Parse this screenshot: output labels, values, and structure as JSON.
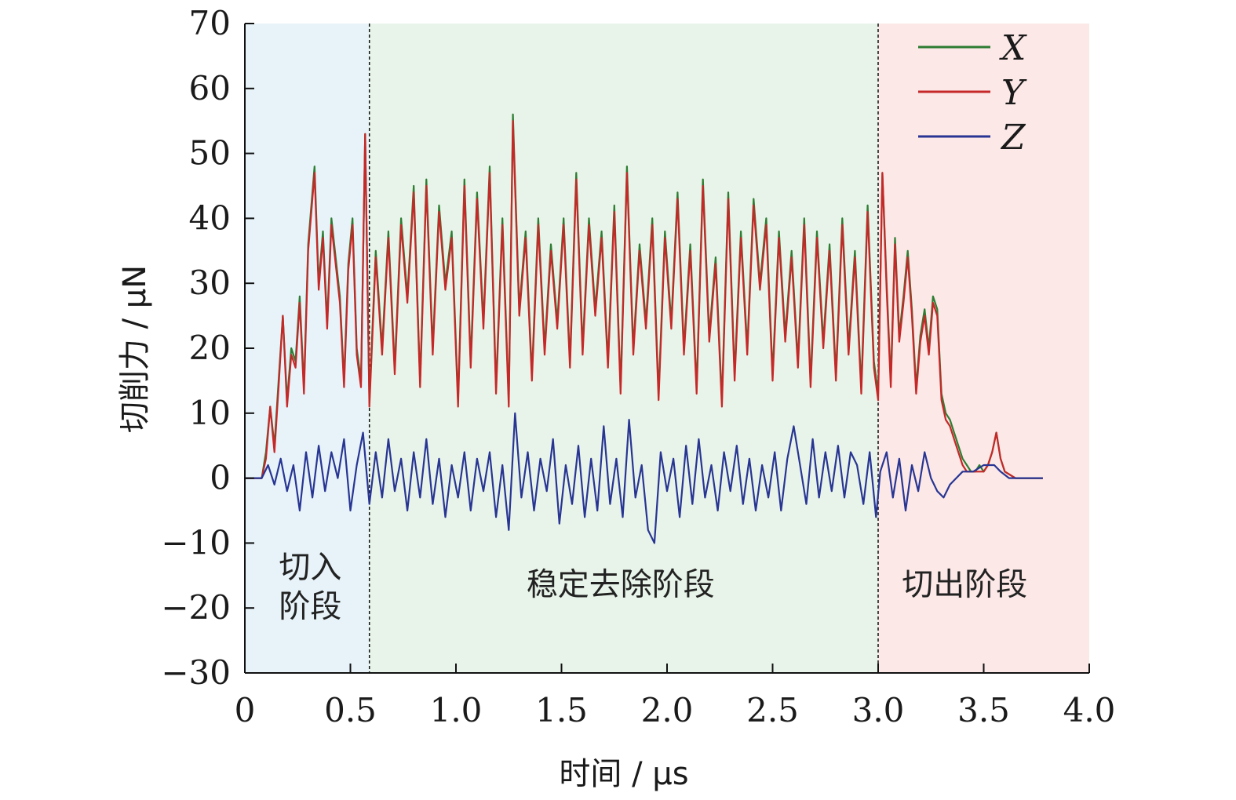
{
  "chart_data": {
    "type": "line",
    "xlabel": "时间 / μs",
    "ylabel": "切削力 / μN",
    "xlim": [
      0,
      4.0
    ],
    "ylim": [
      -30,
      70
    ],
    "x_ticks": [
      0,
      0.5,
      1.0,
      1.5,
      2.0,
      2.5,
      3.0,
      3.5,
      4.0
    ],
    "x_tick_labels": [
      "0",
      "0.5",
      "1.0",
      "1.5",
      "2.0",
      "2.5",
      "3.0",
      "3.5",
      "4.0"
    ],
    "y_ticks": [
      70,
      60,
      50,
      40,
      30,
      20,
      10,
      0,
      -10,
      -20,
      -30
    ],
    "y_tick_labels": [
      "70",
      "60",
      "50",
      "40",
      "30",
      "20",
      "10",
      "0",
      "−10",
      "−20",
      "−30"
    ],
    "legend_position": "top-right",
    "regions": [
      {
        "x_start": 0.0,
        "x_end": 0.59,
        "label_lines": [
          "切入",
          "阶段"
        ],
        "color": "#e7f3f9"
      },
      {
        "x_start": 0.59,
        "x_end": 3.0,
        "label_lines": [
          "稳定去除阶段"
        ],
        "color": "#e8f4e9"
      },
      {
        "x_start": 3.0,
        "x_end": 4.0,
        "label_lines": [
          "切出阶段"
        ],
        "color": "#fbe8e7"
      }
    ],
    "boundaries": [
      0.59,
      3.0
    ],
    "series": [
      {
        "name": "X",
        "color": "#2e7d32",
        "x": [
          0,
          0.08,
          0.1,
          0.12,
          0.14,
          0.16,
          0.18,
          0.2,
          0.22,
          0.24,
          0.26,
          0.28,
          0.3,
          0.33,
          0.35,
          0.37,
          0.39,
          0.41,
          0.43,
          0.45,
          0.47,
          0.49,
          0.51,
          0.53,
          0.55,
          0.57,
          0.59,
          0.62,
          0.65,
          0.68,
          0.71,
          0.74,
          0.77,
          0.8,
          0.83,
          0.86,
          0.89,
          0.92,
          0.95,
          0.98,
          1.01,
          1.04,
          1.07,
          1.1,
          1.13,
          1.16,
          1.19,
          1.22,
          1.25,
          1.27,
          1.3,
          1.33,
          1.36,
          1.39,
          1.42,
          1.45,
          1.48,
          1.51,
          1.54,
          1.57,
          1.6,
          1.63,
          1.66,
          1.69,
          1.72,
          1.75,
          1.78,
          1.81,
          1.84,
          1.87,
          1.9,
          1.93,
          1.96,
          1.99,
          2.02,
          2.05,
          2.08,
          2.11,
          2.14,
          2.17,
          2.2,
          2.23,
          2.26,
          2.29,
          2.32,
          2.35,
          2.38,
          2.41,
          2.44,
          2.47,
          2.5,
          2.53,
          2.56,
          2.59,
          2.62,
          2.65,
          2.68,
          2.71,
          2.74,
          2.77,
          2.8,
          2.83,
          2.86,
          2.89,
          2.92,
          2.95,
          2.98,
          3.0,
          3.02,
          3.04,
          3.06,
          3.08,
          3.1,
          3.12,
          3.14,
          3.16,
          3.18,
          3.2,
          3.22,
          3.24,
          3.26,
          3.28,
          3.3,
          3.32,
          3.34,
          3.36,
          3.38,
          3.4,
          3.42,
          3.44,
          3.46,
          3.48,
          3.5,
          3.52,
          3.54,
          3.56,
          3.58,
          3.6,
          3.65,
          3.7,
          3.78
        ],
        "y": [
          0,
          0,
          4,
          11,
          5,
          15,
          25,
          12,
          20,
          18,
          28,
          14,
          36,
          48,
          30,
          38,
          24,
          40,
          34,
          28,
          15,
          33,
          40,
          20,
          15,
          53,
          12,
          35,
          20,
          38,
          17,
          40,
          28,
          45,
          15,
          46,
          20,
          42,
          30,
          38,
          12,
          46,
          18,
          44,
          24,
          48,
          14,
          40,
          12,
          56,
          26,
          38,
          16,
          40,
          20,
          36,
          24,
          40,
          18,
          47,
          20,
          40,
          26,
          38,
          18,
          42,
          14,
          48,
          20,
          36,
          24,
          40,
          13,
          38,
          24,
          44,
          20,
          36,
          14,
          46,
          22,
          34,
          12,
          44,
          16,
          38,
          20,
          43,
          30,
          40,
          16,
          38,
          22,
          35,
          18,
          40,
          15,
          38,
          21,
          36,
          16,
          40,
          20,
          35,
          14,
          42,
          18,
          13,
          47,
          30,
          15,
          37,
          22,
          28,
          35,
          26,
          14,
          22,
          26,
          20,
          28,
          26,
          13,
          10,
          9,
          7,
          5,
          3,
          2,
          1,
          1,
          2,
          1,
          2,
          4,
          7,
          3,
          1,
          0,
          0,
          0
        ]
      },
      {
        "name": "Y",
        "color": "#c62828",
        "x": [
          0,
          0.08,
          0.1,
          0.12,
          0.14,
          0.16,
          0.18,
          0.2,
          0.22,
          0.24,
          0.26,
          0.28,
          0.3,
          0.33,
          0.35,
          0.37,
          0.39,
          0.41,
          0.43,
          0.45,
          0.47,
          0.49,
          0.51,
          0.53,
          0.55,
          0.57,
          0.59,
          0.62,
          0.65,
          0.68,
          0.71,
          0.74,
          0.77,
          0.8,
          0.83,
          0.86,
          0.89,
          0.92,
          0.95,
          0.98,
          1.01,
          1.04,
          1.07,
          1.1,
          1.13,
          1.16,
          1.19,
          1.22,
          1.25,
          1.27,
          1.3,
          1.33,
          1.36,
          1.39,
          1.42,
          1.45,
          1.48,
          1.51,
          1.54,
          1.57,
          1.6,
          1.63,
          1.66,
          1.69,
          1.72,
          1.75,
          1.78,
          1.81,
          1.84,
          1.87,
          1.9,
          1.93,
          1.96,
          1.99,
          2.02,
          2.05,
          2.08,
          2.11,
          2.14,
          2.17,
          2.2,
          2.23,
          2.26,
          2.29,
          2.32,
          2.35,
          2.38,
          2.41,
          2.44,
          2.47,
          2.5,
          2.53,
          2.56,
          2.59,
          2.62,
          2.65,
          2.68,
          2.71,
          2.74,
          2.77,
          2.8,
          2.83,
          2.86,
          2.89,
          2.92,
          2.95,
          2.98,
          3.0,
          3.02,
          3.04,
          3.06,
          3.08,
          3.1,
          3.12,
          3.14,
          3.16,
          3.18,
          3.2,
          3.22,
          3.24,
          3.26,
          3.28,
          3.3,
          3.32,
          3.34,
          3.36,
          3.38,
          3.4,
          3.42,
          3.44,
          3.46,
          3.48,
          3.5,
          3.52,
          3.54,
          3.56,
          3.58,
          3.6,
          3.65,
          3.7,
          3.78
        ],
        "y": [
          0,
          0,
          3,
          11,
          4,
          14,
          25,
          11,
          19,
          17,
          27,
          13,
          35,
          47,
          29,
          37,
          23,
          39,
          33,
          27,
          14,
          32,
          39,
          19,
          14,
          53,
          11,
          34,
          19,
          37,
          16,
          39,
          27,
          44,
          14,
          45,
          19,
          41,
          29,
          37,
          11,
          45,
          17,
          43,
          23,
          47,
          13,
          39,
          11,
          55,
          25,
          37,
          15,
          39,
          19,
          35,
          23,
          39,
          17,
          46,
          19,
          39,
          25,
          37,
          17,
          41,
          13,
          47,
          19,
          35,
          23,
          39,
          12,
          37,
          23,
          43,
          19,
          35,
          13,
          45,
          21,
          33,
          11,
          43,
          15,
          37,
          19,
          42,
          29,
          39,
          15,
          37,
          21,
          34,
          17,
          39,
          14,
          37,
          20,
          35,
          15,
          39,
          19,
          34,
          13,
          41,
          17,
          12,
          47,
          29,
          14,
          36,
          21,
          27,
          34,
          25,
          13,
          21,
          25,
          19,
          27,
          25,
          12,
          9,
          8,
          6,
          4,
          2,
          1,
          1,
          1,
          1,
          1,
          2,
          4,
          7,
          3,
          1,
          0,
          0,
          0
        ]
      },
      {
        "name": "Z",
        "color": "#283593",
        "x": [
          0,
          0.08,
          0.11,
          0.14,
          0.17,
          0.2,
          0.23,
          0.26,
          0.29,
          0.32,
          0.35,
          0.38,
          0.41,
          0.44,
          0.47,
          0.5,
          0.53,
          0.56,
          0.59,
          0.62,
          0.65,
          0.68,
          0.71,
          0.74,
          0.77,
          0.8,
          0.83,
          0.86,
          0.89,
          0.92,
          0.95,
          0.98,
          1.01,
          1.04,
          1.07,
          1.1,
          1.13,
          1.16,
          1.19,
          1.22,
          1.25,
          1.28,
          1.31,
          1.34,
          1.37,
          1.4,
          1.43,
          1.46,
          1.49,
          1.52,
          1.55,
          1.58,
          1.61,
          1.64,
          1.67,
          1.7,
          1.73,
          1.76,
          1.79,
          1.82,
          1.85,
          1.88,
          1.91,
          1.94,
          1.97,
          2.0,
          2.03,
          2.06,
          2.09,
          2.12,
          2.15,
          2.18,
          2.21,
          2.24,
          2.27,
          2.3,
          2.33,
          2.36,
          2.39,
          2.42,
          2.45,
          2.48,
          2.51,
          2.54,
          2.57,
          2.6,
          2.63,
          2.66,
          2.69,
          2.72,
          2.75,
          2.78,
          2.81,
          2.84,
          2.87,
          2.9,
          2.93,
          2.96,
          2.99,
          3.01,
          3.04,
          3.07,
          3.1,
          3.13,
          3.16,
          3.19,
          3.22,
          3.25,
          3.28,
          3.31,
          3.34,
          3.37,
          3.4,
          3.45,
          3.5,
          3.55,
          3.58,
          3.62,
          3.7,
          3.78
        ],
        "y": [
          0,
          0,
          2,
          -1,
          3,
          -2,
          2,
          -5,
          4,
          -3,
          5,
          -2,
          4,
          0,
          6,
          -5,
          2,
          7,
          -4,
          4,
          -3,
          6,
          -2,
          3,
          -5,
          4,
          -3,
          6,
          -4,
          3,
          -6,
          2,
          -3,
          4,
          -5,
          3,
          -2,
          4,
          -6,
          2,
          -8,
          10,
          -3,
          4,
          -5,
          3,
          -2,
          6,
          -7,
          2,
          -4,
          5,
          -6,
          3,
          -5,
          8,
          -4,
          3,
          -6,
          9,
          -3,
          2,
          -8,
          -10,
          4,
          -2,
          3,
          -6,
          5,
          -4,
          6,
          -3,
          2,
          -5,
          4,
          -2,
          5,
          -4,
          3,
          -5,
          2,
          -3,
          4,
          -5,
          3,
          8,
          2,
          -4,
          6,
          -3,
          4,
          -2,
          5,
          -3,
          4,
          2,
          -4,
          4,
          -6,
          1,
          4,
          -3,
          3,
          -5,
          2,
          -2,
          4,
          0,
          -2,
          -3,
          -1,
          0,
          1,
          1,
          2,
          2,
          1,
          0,
          0,
          0
        ]
      }
    ]
  }
}
